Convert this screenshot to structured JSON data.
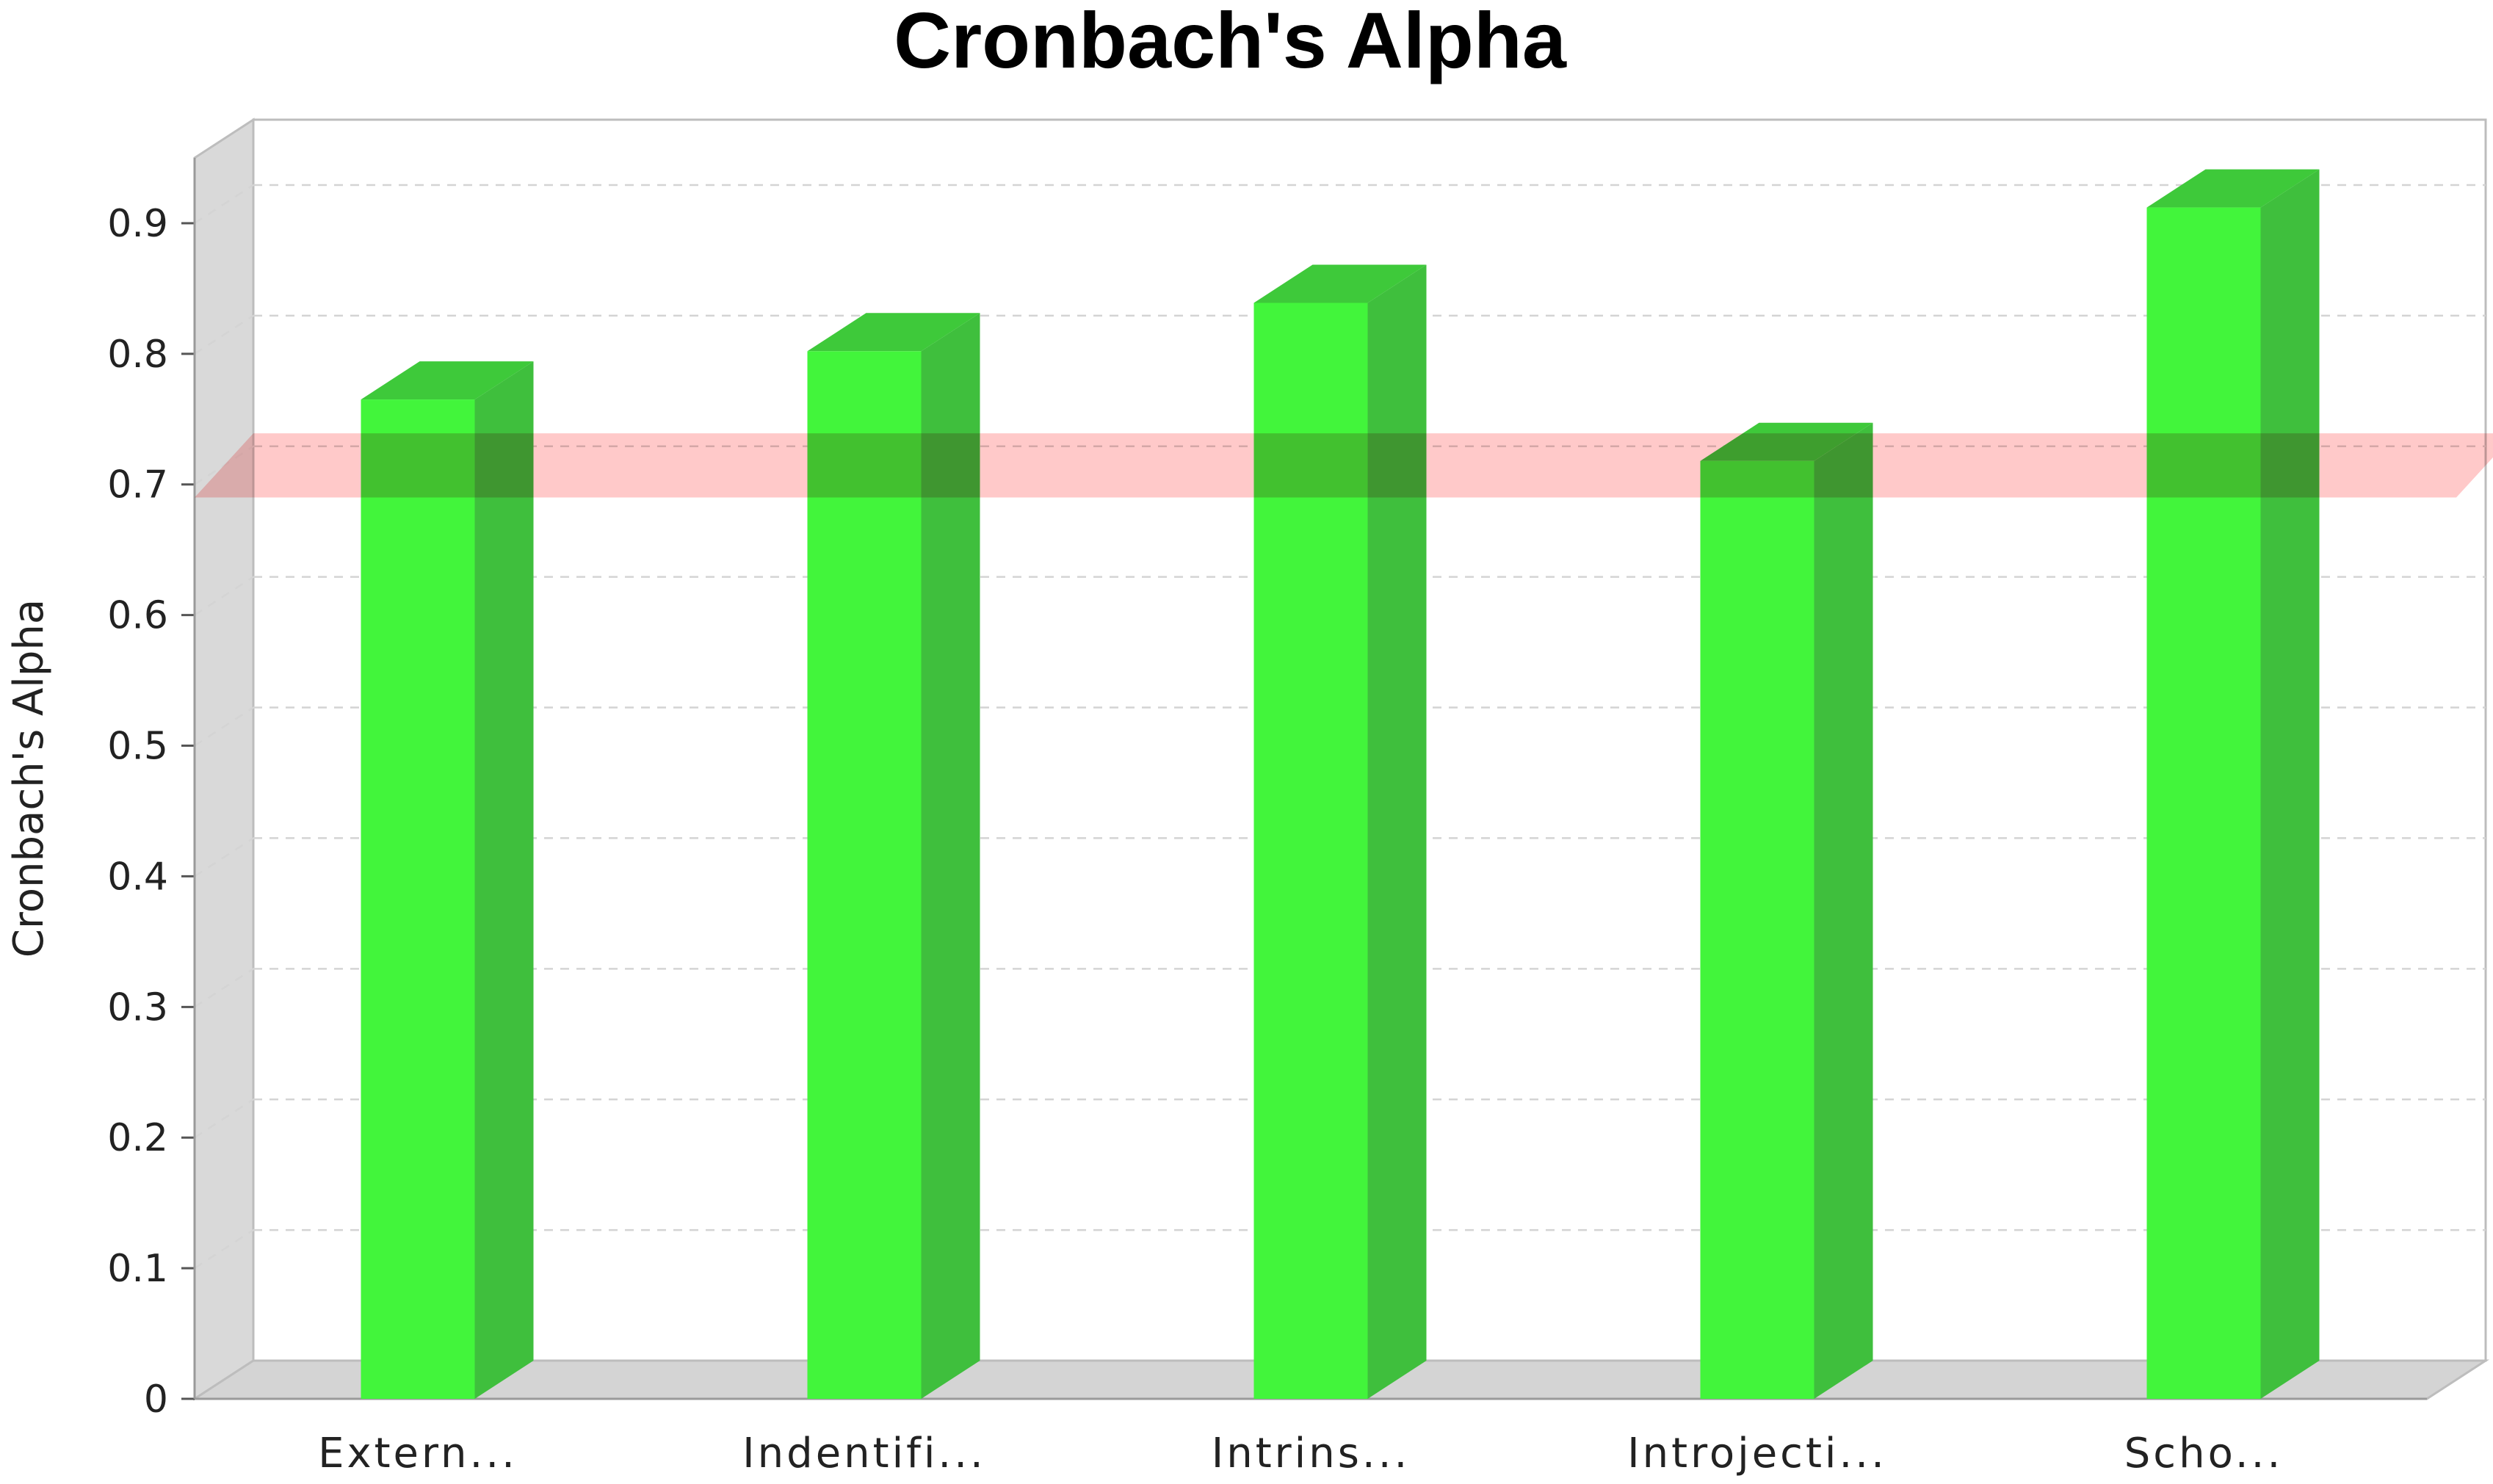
{
  "chart_data": {
    "type": "bar",
    "title": "Cronbach's Alpha",
    "ylabel": "Cronbach's Alpha",
    "xlabel": "",
    "categories": [
      "Extern...",
      "Indentifi...",
      "Intrins...",
      "Introjecti...",
      "Scho..."
    ],
    "values": [
      0.765,
      0.802,
      0.839,
      0.718,
      0.912
    ],
    "ylim": [
      0,
      0.95
    ],
    "yticks": [
      "0",
      "0.1",
      "0.2",
      "0.3",
      "0.4",
      "0.5",
      "0.6",
      "0.7",
      "0.8",
      "0.9"
    ],
    "reference_band": [
      0.69,
      0.72
    ],
    "grid": true,
    "legend": "none",
    "style": "3d",
    "colors": {
      "bar_front": "#42f53b",
      "bar_side": "#3fbf3d",
      "bar_top": "#3ec93a",
      "band": "#ffc0c0",
      "wall": "#d9d9d9",
      "floor": "#d4d4d4"
    }
  }
}
